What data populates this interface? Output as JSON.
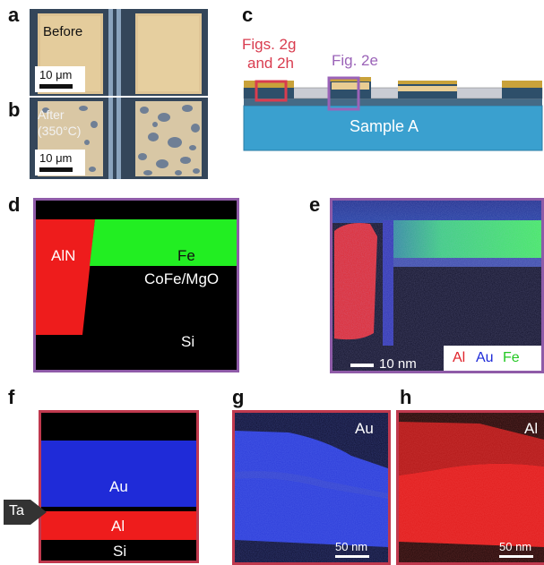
{
  "panels": {
    "a": {
      "letter": "a",
      "label": "Before",
      "scalebar": "10 μm"
    },
    "b": {
      "letter": "b",
      "label_line1": "After",
      "label_line2": "(350°C)",
      "scalebar": "10 μm"
    },
    "c": {
      "letter": "c",
      "callout_red_line1": "Figs. 2g",
      "callout_red_line2": "and 2h",
      "callout_purple": "Fig. 2e",
      "substrate_label": "Sample A"
    },
    "d": {
      "letter": "d",
      "label_aln": "AlN",
      "label_fe": "Fe",
      "label_cofe": "CoFe/MgO",
      "label_si": "Si"
    },
    "e": {
      "letter": "e",
      "scalebar": "10 nm",
      "legend_al": "Al",
      "legend_au": "Au",
      "legend_fe": "Fe"
    },
    "f": {
      "letter": "f",
      "label_au": "Au",
      "label_al": "Al",
      "label_si": "Si",
      "label_ta": "Ta"
    },
    "g": {
      "letter": "g",
      "element": "Au",
      "scalebar": "50 nm"
    },
    "h": {
      "letter": "h",
      "element": "Al",
      "scalebar": "50 nm"
    }
  },
  "colors": {
    "frame_purple": "#8f5ba8",
    "frame_red": "#c0394e",
    "callout_red": "#d93c4f",
    "callout_purple": "#9b63b8",
    "al_red": "#ee1c1c",
    "au_blue": "#1f2bd8",
    "fe_green": "#23ee23",
    "substrate_blue": "#3aa0cf",
    "gold": "#c9a23a"
  }
}
